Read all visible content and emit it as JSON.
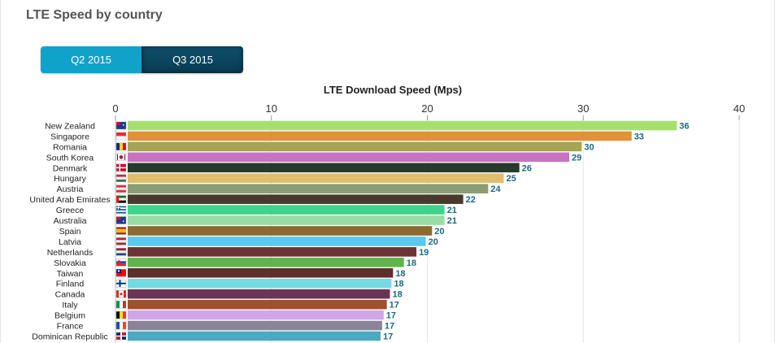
{
  "page": {
    "title": "LTE Speed by country"
  },
  "toggle": {
    "options": [
      "Q2 2015",
      "Q3 2015"
    ],
    "selected": "Q3 2015"
  },
  "colors": {
    "value_label": "#1d6a7e",
    "q2_button": "#0fa3c9",
    "q3_button": "#0b4660"
  },
  "chart_data": {
    "type": "bar",
    "orientation": "horizontal",
    "title": "LTE Download Speed (Mps)",
    "xlim": [
      0,
      40
    ],
    "ticks": [
      0,
      10,
      20,
      30,
      40
    ],
    "grid": true,
    "legend": "none",
    "categories": [
      "New Zealand",
      "Singapore",
      "Romania",
      "South Korea",
      "Denmark",
      "Hungary",
      "Austria",
      "United Arab Emirates",
      "Greece",
      "Australia",
      "Spain",
      "Latvia",
      "Netherlands",
      "Slovakia",
      "Taiwan",
      "Finland",
      "Canada",
      "Italy",
      "Belgium",
      "France",
      "Dominican Republic"
    ],
    "values": [
      36,
      33,
      30,
      29,
      26,
      25,
      24,
      22,
      21,
      21,
      20,
      20,
      19,
      18,
      18,
      18,
      18,
      17,
      17,
      17,
      17
    ],
    "exact_values": [
      36.0,
      33.1,
      29.9,
      29.1,
      25.9,
      24.9,
      23.9,
      22.3,
      21.1,
      21.1,
      20.3,
      19.9,
      19.3,
      18.5,
      17.8,
      17.7,
      17.6,
      17.4,
      17.2,
      17.1,
      17.0
    ],
    "bar_colors": [
      "#a5e06e",
      "#e0913a",
      "#a4a452",
      "#c872c2",
      "#263b2d",
      "#e0bd6f",
      "#8a9d74",
      "#4a3a2e",
      "#42d28c",
      "#97dda5",
      "#8d6a32",
      "#5bc8ee",
      "#6d3234",
      "#63b34c",
      "#5e2f2d",
      "#74dbe3",
      "#6c3555",
      "#a0502e",
      "#cfa6ea",
      "#8b8497",
      "#4baac1"
    ],
    "flags": [
      "nz",
      "sg",
      "ro",
      "kr",
      "dk",
      "hu",
      "at",
      "ae",
      "gr",
      "au",
      "es",
      "lv",
      "nl",
      "sk",
      "tw",
      "fi",
      "ca",
      "it",
      "be",
      "fr",
      "do"
    ]
  }
}
